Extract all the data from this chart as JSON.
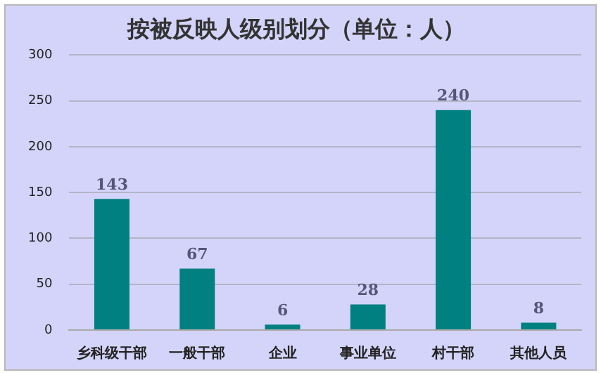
{
  "chart_data": {
    "type": "bar",
    "title": "按被反映人级别划分（单位：人）",
    "categories": [
      "乡科级干部",
      "一般干部",
      "企业",
      "事业单位",
      "村干部",
      "其他人员"
    ],
    "values": [
      143,
      67,
      6,
      28,
      240,
      8
    ],
    "color": "#008080",
    "ylim": [
      0,
      300
    ],
    "yticks": [
      0,
      50,
      100,
      150,
      200,
      250,
      300
    ],
    "grid": "y",
    "data_labels": true,
    "legend": false
  }
}
